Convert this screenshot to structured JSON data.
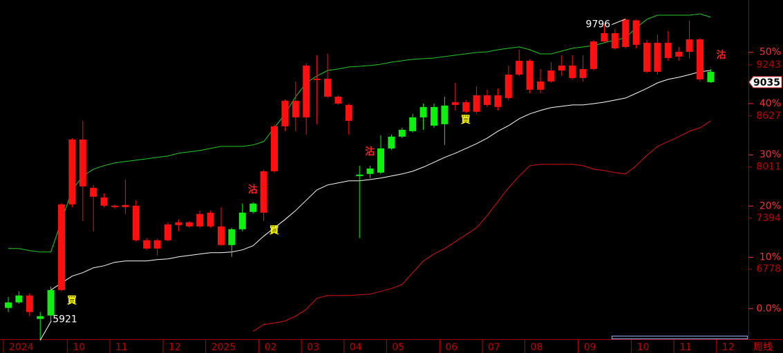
{
  "chart_data": {
    "type": "candlestick",
    "period": "周线",
    "categories": [
      "2024",
      null,
      null,
      null,
      null,
      null,
      "10",
      null,
      null,
      null,
      "11",
      null,
      null,
      null,
      null,
      "12",
      null,
      null,
      null,
      "2025",
      null,
      null,
      null,
      null,
      "02",
      null,
      null,
      null,
      "03",
      null,
      null,
      null,
      "04",
      null,
      null,
      null,
      "05",
      null,
      null,
      null,
      null,
      "06",
      null,
      null,
      null,
      "07",
      null,
      null,
      null,
      "08",
      null,
      null,
      null,
      null,
      "09",
      null,
      null,
      null,
      null,
      "10",
      null,
      null,
      null,
      "11",
      null,
      null,
      null,
      "12"
    ],
    "open": [
      6377,
      6461,
      6261,
      6211,
      6527,
      6527,
      7560,
      7777,
      7652,
      7544,
      7527,
      7527,
      7127,
      7027,
      7027,
      7127,
      7310,
      7294,
      7294,
      7294,
      7069,
      7260,
      7460,
      7569,
      7460,
      7960,
      8502,
      8610,
      8610,
      9060,
      8860,
      8776,
      8568,
      7919,
      7993,
      8235,
      8377,
      8460,
      8610,
      8735,
      8735,
      8752,
      8760,
      8677,
      8677,
      8760,
      8735,
      8843,
      9126,
      8943,
      8943,
      9043,
      9176,
      9085,
      9085,
      9193,
      9526,
      9443,
      9460,
      9485,
      9160,
      9160,
      9326,
      9343,
      9401,
      9068,
      9160,
      null
    ],
    "high": [
      6444,
      6511,
      6486,
      6261,
      6569,
      7577,
      8360,
      8568,
      7794,
      7694,
      7560,
      7860,
      7610,
      7152,
      7144,
      7344,
      7377,
      7360,
      7485,
      7485,
      7527,
      7277,
      7569,
      7585,
      7977,
      8527,
      8826,
      9043,
      9260,
      9360,
      9376,
      8876,
      8776,
      8027,
      8027,
      8393,
      8402,
      8485,
      8652,
      8776,
      8776,
      8860,
      9026,
      8818,
      8985,
      8943,
      8960,
      9235,
      9426,
      9310,
      9193,
      9276,
      9360,
      9360,
      9360,
      9543,
      9734,
      9676,
      9796,
      9790,
      9543,
      9609,
      9651,
      9460,
      9776,
      9568,
      9193,
      null
    ],
    "low": [
      6261,
      6361,
      6211,
      5921,
      6153,
      6511,
      7527,
      7360,
      7235,
      7527,
      7510,
      7444,
      7110,
      7011,
      6944,
      7110,
      7235,
      7277,
      7277,
      7277,
      7061,
      6927,
      7235,
      7452,
      7360,
      7943,
      8443,
      8443,
      8402,
      8527,
      8843,
      8760,
      8402,
      7152,
      7877,
      7927,
      8218,
      8360,
      8427,
      8460,
      8485,
      8277,
      8693,
      8660,
      8652,
      8735,
      8693,
      8818,
      9110,
      8901,
      8901,
      9026,
      9110,
      9068,
      9043,
      9176,
      9510,
      9426,
      9443,
      9443,
      9143,
      9126,
      9293,
      9293,
      9318,
      9043,
      9026,
      null
    ],
    "close": [
      6311,
      6377,
      6461,
      6178,
      6219,
      7560,
      8343,
      8343,
      7760,
      7644,
      7544,
      7552,
      7544,
      7127,
      7127,
      7319,
      7344,
      7344,
      7444,
      7460,
      7294,
      7069,
      7260,
      7469,
      7960,
      8502,
      8810,
      8810,
      9235,
      9076,
      9076,
      8860,
      8760,
      7902,
      7927,
      7943,
      8235,
      8377,
      8443,
      8610,
      8510,
      8527,
      8793,
      8793,
      8876,
      8876,
      8876,
      9126,
      9293,
      9293,
      9043,
      9176,
      9235,
      9235,
      9193,
      9526,
      9626,
      9626,
      9790,
      9780,
      9510,
      9510,
      9510,
      9401,
      9551,
      9551,
      9035,
      null
    ],
    "up_color": "#ff1010",
    "down_color": "#10f010",
    "bands": [
      {
        "color": "#22cc22",
        "values": [
          7027,
          7027,
          7002,
          6986,
          6986,
          7360,
          7735,
          7902,
          7985,
          8027,
          8060,
          8077,
          8093,
          8110,
          8127,
          8143,
          8177,
          8193,
          8210,
          8235,
          8260,
          8260,
          8260,
          8277,
          8318,
          8485,
          8652,
          8860,
          9026,
          9110,
          9176,
          9193,
          9218,
          9226,
          9235,
          9251,
          9276,
          9293,
          9310,
          9318,
          9326,
          9343,
          9360,
          9376,
          9393,
          9401,
          9426,
          9443,
          9460,
          9426,
          9376,
          9376,
          9410,
          9443,
          9460,
          9476,
          9510,
          9543,
          9568,
          9693,
          9793,
          9843,
          9843,
          9843,
          9843,
          9859,
          9818,
          null
        ]
      },
      {
        "color": "#ffffff",
        "values": [
          null,
          null,
          null,
          null,
          6527,
          6611,
          6694,
          6736,
          6794,
          6819,
          6861,
          6877,
          6877,
          6877,
          6894,
          6902,
          6927,
          6944,
          6961,
          6977,
          6977,
          6986,
          7011,
          7061,
          7177,
          7277,
          7377,
          7485,
          7610,
          7735,
          7794,
          7819,
          7844,
          7844,
          7860,
          7877,
          7902,
          7927,
          7960,
          8010,
          8068,
          8127,
          8177,
          8235,
          8293,
          8360,
          8443,
          8510,
          8593,
          8652,
          8693,
          8727,
          8743,
          8760,
          8760,
          8776,
          8793,
          8818,
          8843,
          8901,
          8960,
          9026,
          9068,
          9093,
          9126,
          9160,
          9176,
          null
        ]
      },
      {
        "color": "#dd1010",
        "values": [
          null,
          null,
          null,
          null,
          null,
          null,
          null,
          null,
          null,
          null,
          null,
          null,
          null,
          null,
          null,
          null,
          null,
          null,
          null,
          null,
          null,
          null,
          null,
          6028,
          6111,
          6128,
          6153,
          6211,
          6294,
          6427,
          6461,
          6461,
          6461,
          6469,
          6477,
          6511,
          6544,
          6594,
          6736,
          6877,
          6961,
          7027,
          7110,
          7194,
          7277,
          7427,
          7594,
          7760,
          7902,
          8027,
          8043,
          8043,
          8043,
          8043,
          8027,
          7985,
          7968,
          7943,
          7927,
          8027,
          8152,
          8260,
          8318,
          8377,
          8443,
          8485,
          8568,
          null
        ]
      }
    ],
    "signals": {
      "buy": {
        "color": "#ffff00",
        "labels": [
          null,
          null,
          null,
          null,
          null,
          "買",
          null,
          null,
          null,
          null,
          null,
          null,
          null,
          null,
          null,
          null,
          null,
          null,
          null,
          null,
          null,
          null,
          null,
          null,
          "買",
          null,
          null,
          null,
          null,
          null,
          null,
          null,
          null,
          null,
          null,
          null,
          null,
          null,
          null,
          null,
          null,
          null,
          "買",
          null,
          null,
          null,
          null,
          null,
          null,
          null,
          null,
          null,
          null,
          null,
          null,
          null,
          null,
          null,
          null,
          null,
          null,
          null,
          null,
          null,
          null,
          null,
          null,
          null
        ]
      },
      "sell": {
        "color": "#ff2020",
        "labels": [
          null,
          null,
          null,
          null,
          null,
          null,
          null,
          null,
          null,
          null,
          null,
          null,
          null,
          null,
          null,
          null,
          null,
          null,
          null,
          null,
          null,
          null,
          "沽",
          null,
          null,
          null,
          null,
          null,
          null,
          null,
          null,
          null,
          null,
          "沽",
          null,
          null,
          null,
          null,
          null,
          null,
          null,
          null,
          null,
          null,
          null,
          null,
          null,
          null,
          null,
          null,
          null,
          null,
          null,
          null,
          null,
          null,
          null,
          null,
          null,
          null,
          null,
          null,
          null,
          null,
          null,
          null,
          "沽",
          null
        ]
      }
    },
    "ylim": [
      5900,
      10026
    ],
    "yticks": [
      6778,
      7394,
      8011,
      8627,
      9243
    ],
    "y2lim": [
      -6.5,
      60.2
    ],
    "y2ticks": [
      {
        "value": 0,
        "label": "0.0%"
      },
      {
        "value": 10,
        "label": "10%"
      },
      {
        "value": 20,
        "label": "20%"
      },
      {
        "value": 30,
        "label": "30%"
      },
      {
        "value": 40,
        "label": "40%"
      },
      {
        "value": 50,
        "label": "50%"
      }
    ],
    "axis_color": "#c00000",
    "y2_color": "#ff3030"
  }
}
